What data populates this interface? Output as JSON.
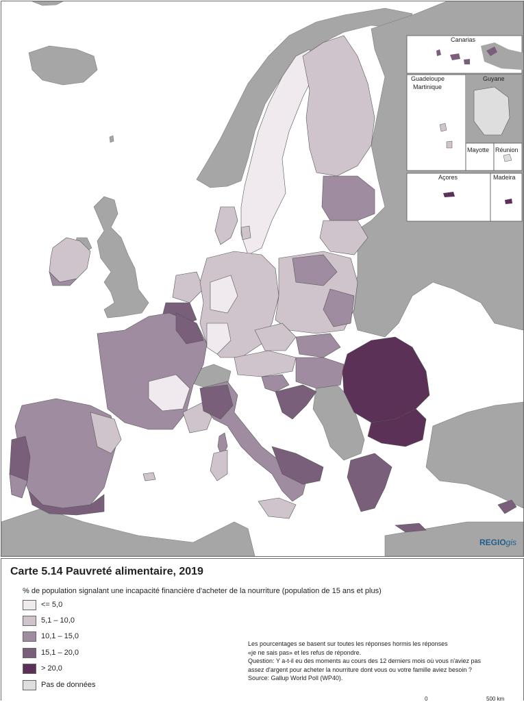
{
  "title": "Carte 5.14 Pauvreté alimentaire, 2019",
  "subtitle": "% de population signalant une incapacité financière d'acheter de la nourriture (population de 15 ans et plus)",
  "legend": [
    {
      "label": "<= 5,0",
      "color": "#f0eaee"
    },
    {
      "label": "5,1 – 10,0",
      "color": "#cfc3cc"
    },
    {
      "label": "10,1 – 15,0",
      "color": "#a08ca1"
    },
    {
      "label": "15,1 – 20,0",
      "color": "#7a5f7b"
    },
    {
      "label": "> 20,0",
      "color": "#5c3157"
    },
    {
      "label": "Pas de données",
      "color": "#dedede"
    }
  ],
  "insets": {
    "canarias": "Canarias",
    "guadeloupe": "Guadeloupe",
    "martinique": "Martinique",
    "guyane": "Guyane",
    "mayotte": "Mayotte",
    "reunion": "Réunion",
    "acores": "Açores",
    "madeira": "Madeira"
  },
  "brand": {
    "main": "REGIO",
    "suffix": "gis"
  },
  "notes": [
    "Les pourcentages se basent sur toutes les réponses hormis les réponses",
    "«je ne sais pas» et les refus de répondre.",
    "Question: Y a-t-il eu des moments au cours des 12 derniers mois où vous n'aviez pas",
    "assez d'argent pour acheter la nourriture dont vous ou votre famille aviez besoin ?",
    "Source: Gallup World Poll (WP40)."
  ],
  "scale": {
    "start": "0",
    "end": "500 km"
  },
  "colors": {
    "sea": "#ffffff",
    "non_eu_land": "#a6a6a6",
    "border": "#555555"
  }
}
